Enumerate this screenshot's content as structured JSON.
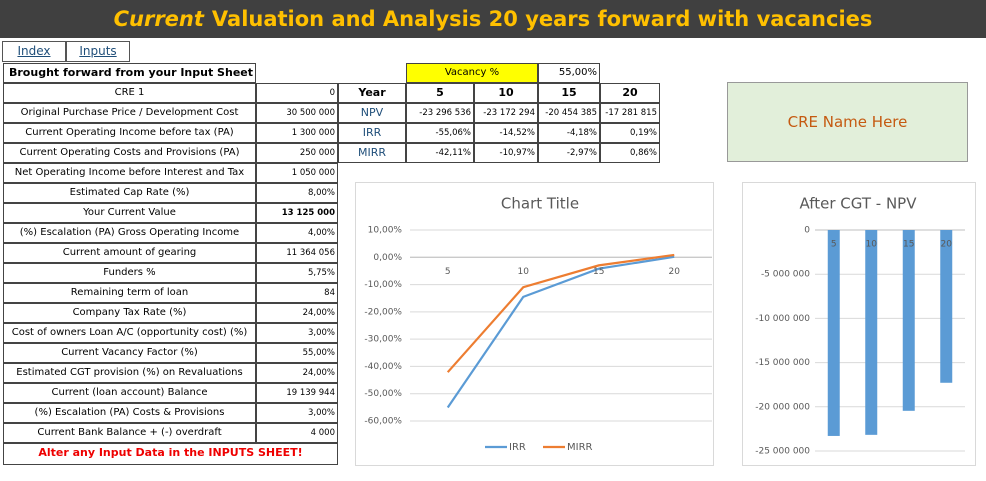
{
  "title": {
    "lead": "Current",
    "rest": "Valuation and Analysis 20 years forward with vacancies"
  },
  "tabs": [
    "Index",
    "Inputs"
  ],
  "left_table": {
    "header": "Brought forward from your Input Sheet",
    "rows": [
      [
        "CRE 1",
        "0"
      ],
      [
        "Original Purchase Price / Development Cost",
        "30 500 000"
      ],
      [
        "Current Operating Income before tax (PA)",
        "1 300 000"
      ],
      [
        "Current Operating Costs and Provisions (PA)",
        "250 000"
      ],
      [
        "Net Operating Income before Interest and Tax",
        "1 050 000"
      ],
      [
        "Estimated Cap Rate (%)",
        "8,00%"
      ],
      [
        "Your Current Value",
        "13 125 000"
      ],
      [
        "(%) Escalation (PA) Gross Operating Income",
        "4,00%"
      ],
      [
        "Current amount of gearing",
        "11 364 056"
      ],
      [
        "Funders %",
        "5,75%"
      ],
      [
        "Remaining term of loan",
        "84"
      ],
      [
        "Company Tax Rate (%)",
        "24,00%"
      ],
      [
        "Cost of owners Loan A/C (opportunity cost) (%)",
        "3,00%"
      ],
      [
        "Current Vacancy Factor (%)",
        "55,00%"
      ],
      [
        "Estimated CGT provision (%) on Revaluations",
        "24,00%"
      ],
      [
        "Current  (loan account) Balance",
        "19 139 944"
      ],
      [
        "(%) Escalation (PA) Costs & Provisions",
        "3,00%"
      ],
      [
        "Current Bank Balance + (-) overdraft",
        "4 000"
      ]
    ],
    "warning": "Alter any Input Data in the INPUTS SHEET!"
  },
  "results": {
    "vacancy_label": "Vacancy %",
    "vacancy_value": "55,00%",
    "header": [
      "Year",
      "5",
      "10",
      "15",
      "20"
    ],
    "rows": [
      [
        "NPV",
        "-23 296 536",
        "-23 172 294",
        "-20 454 385",
        "-17 281 815"
      ],
      [
        "IRR",
        "-55,06%",
        "-14,52%",
        "-4,18%",
        "0,19%"
      ],
      [
        "MIRR",
        "-42,11%",
        "-10,97%",
        "-2,97%",
        "0,86%"
      ]
    ]
  },
  "name_box": "CRE Name Here",
  "chart_data": [
    {
      "type": "line",
      "title": "Chart Title",
      "categories": [
        "5",
        "10",
        "15",
        "20"
      ],
      "series": [
        {
          "name": "IRR",
          "color": "#5b9bd5",
          "values": [
            -55.06,
            -14.52,
            -4.18,
            0.19
          ]
        },
        {
          "name": "MIRR",
          "color": "#ed7d31",
          "values": [
            -42.11,
            -10.97,
            -2.97,
            0.86
          ]
        }
      ],
      "ylim": [
        -60,
        10
      ],
      "yticks": [
        {
          "value": 10,
          "label": "10,00%"
        },
        {
          "value": 0,
          "label": "0,00%"
        },
        {
          "value": -10,
          "label": "-10,00%"
        },
        {
          "value": -20,
          "label": "-20,00%"
        },
        {
          "value": -30,
          "label": "-30,00%"
        },
        {
          "value": -40,
          "label": "-40,00%"
        },
        {
          "value": -50,
          "label": "-50,00%"
        },
        {
          "value": -60,
          "label": "-60,00%"
        }
      ],
      "grid": true,
      "legend": "bottom"
    },
    {
      "type": "bar",
      "title": "After CGT - NPV",
      "categories": [
        "5",
        "10",
        "15",
        "20"
      ],
      "values": [
        -23296536,
        -23172294,
        -20454385,
        -17281815
      ],
      "color": "#5b9bd5",
      "ylim": [
        -25000000,
        0
      ],
      "yticks": [
        0,
        {
          "value": -5000000,
          "label": "-5 000 000"
        },
        {
          "value": -10000000,
          "label": "-10 000 000"
        },
        {
          "value": -15000000,
          "label": "-15 000 000"
        },
        {
          "value": -20000000,
          "label": "-20 000 000"
        },
        {
          "value": -25000000,
          "label": "-25 000 000"
        }
      ],
      "grid": true
    }
  ]
}
